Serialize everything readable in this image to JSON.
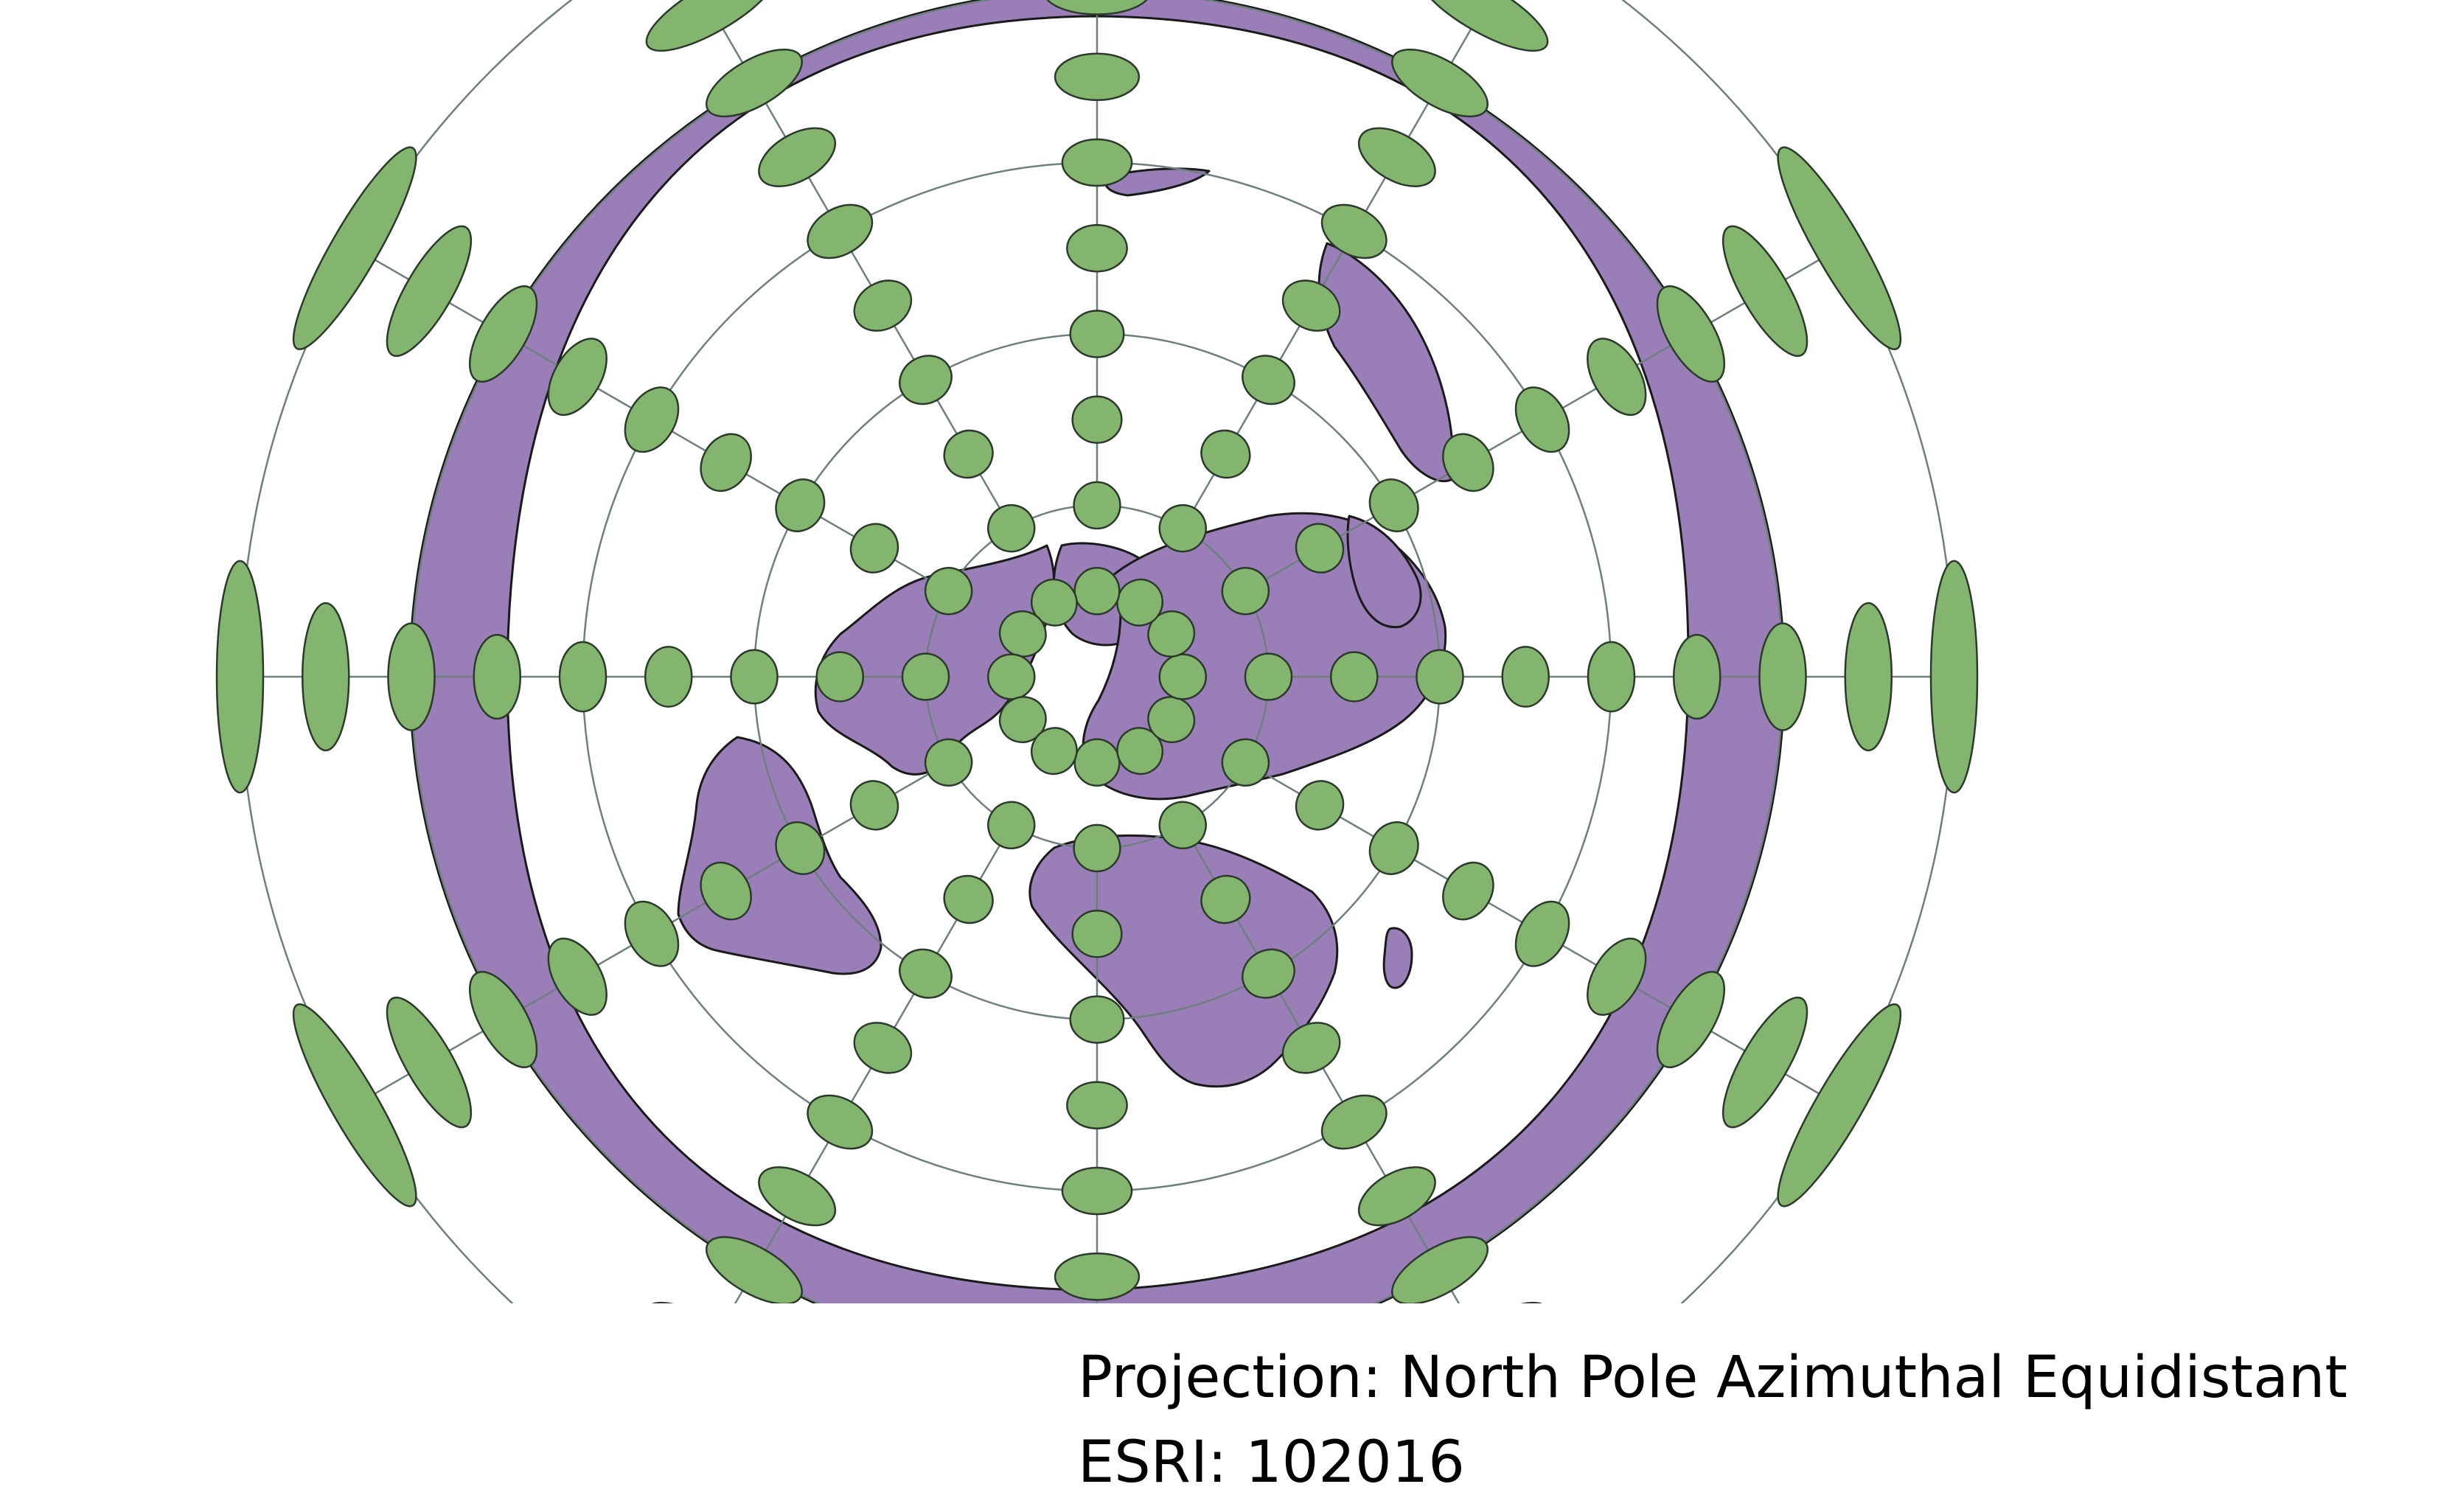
{
  "map": {
    "projection_name": "North Pole Azimuthal Equidistant",
    "center": "North Pole",
    "land_color": "#9a7eb8",
    "ocean_color": "#ffffff",
    "coastline_color": "#1a1a1a",
    "graticule_color": "#6f7f7f",
    "tissot_fill_color": "#84b56f",
    "tissot_stroke_color": "#2b3a2b",
    "features": [
      "world-land-polygons",
      "country-borders",
      "graticule",
      "tissot-indicatrices"
    ],
    "graticule": {
      "parallels_deg": [
        60,
        30,
        0,
        -30,
        -60
      ],
      "meridian_spacing_deg": 30
    },
    "tissot_indicatrices": {
      "latitudes_deg": [
        75,
        60,
        45,
        30,
        15,
        0,
        -15,
        -30,
        -45,
        -60
      ],
      "longitude_spacing_deg": 30
    }
  },
  "caption": {
    "projection_line": "Projection: North Pole Azimuthal Equidistant",
    "esri_line": "ESRI: 102016"
  }
}
